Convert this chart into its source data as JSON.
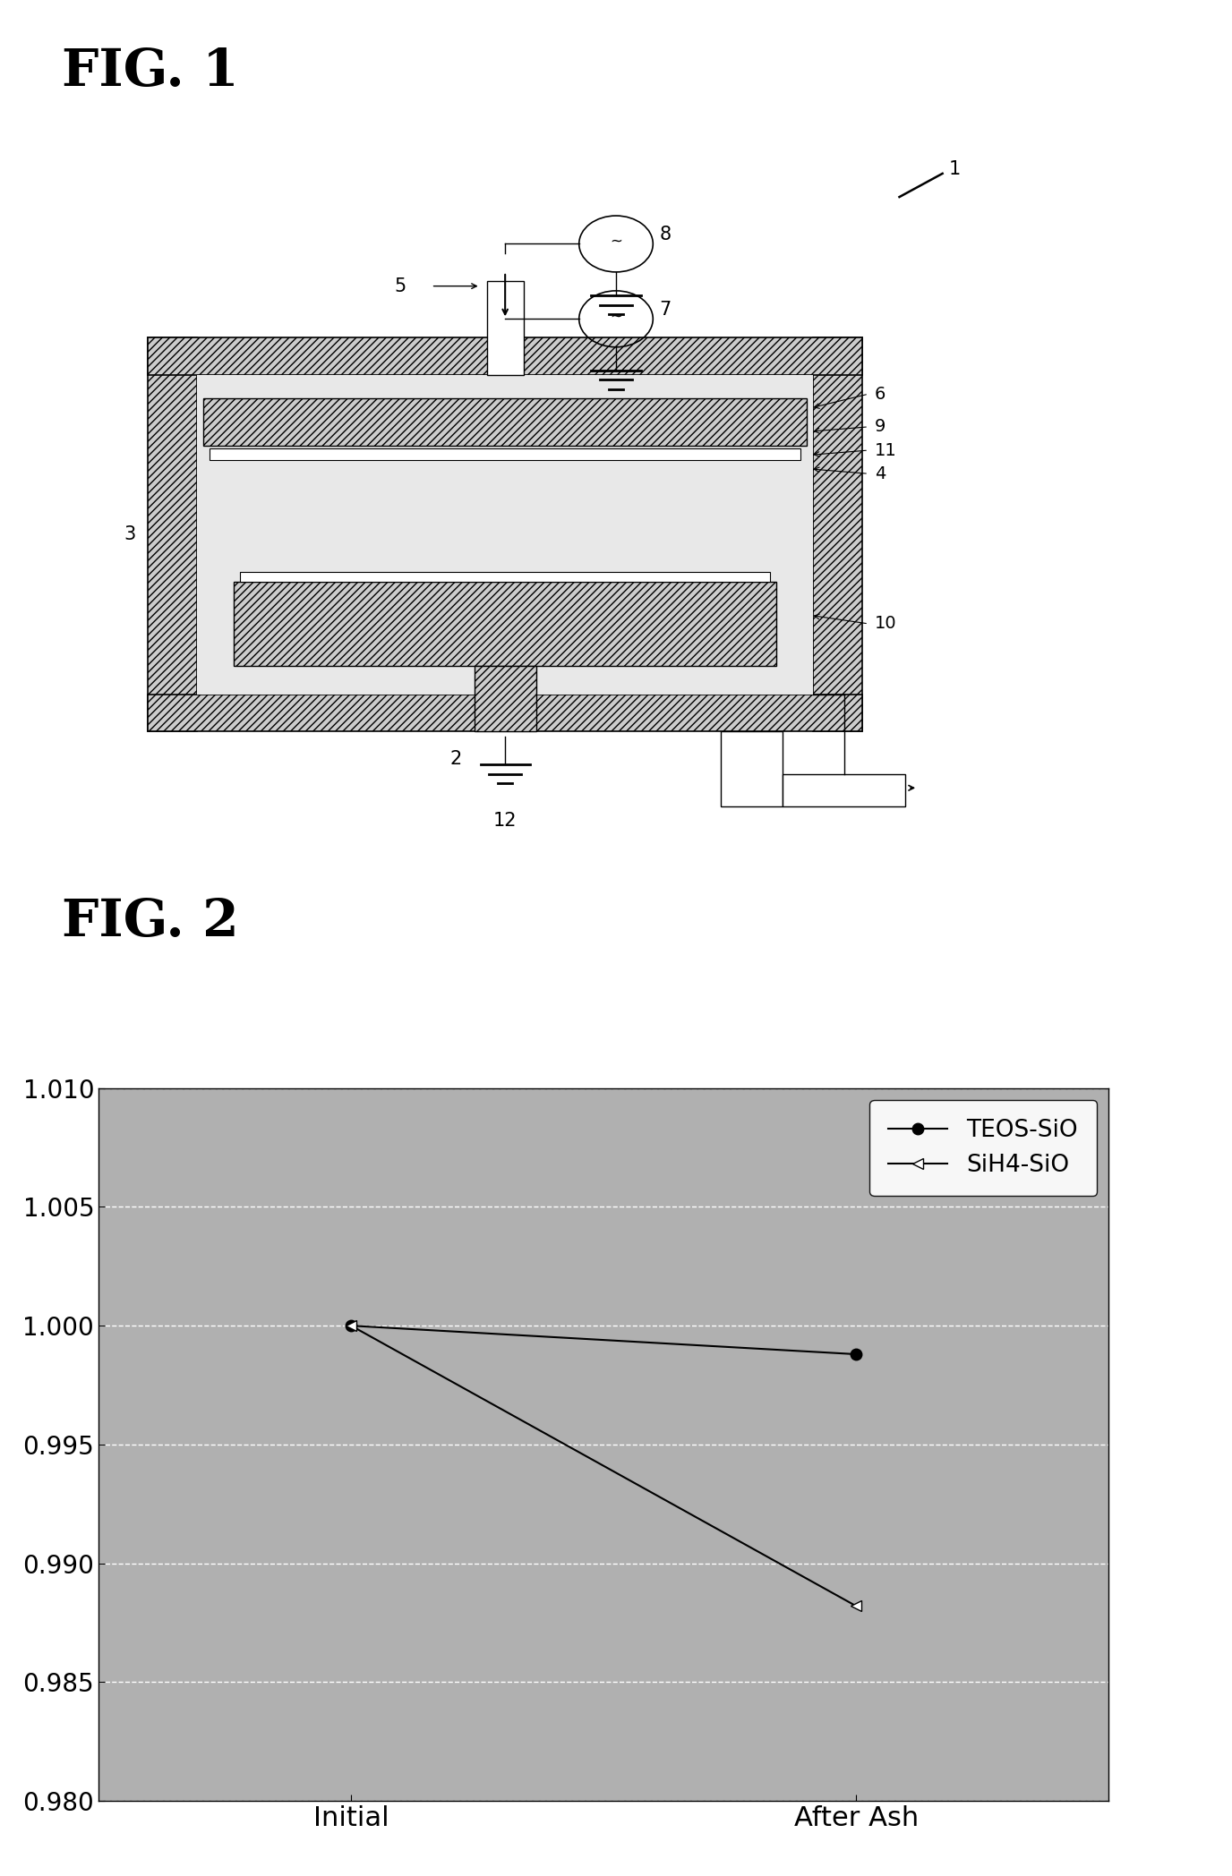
{
  "fig1_title": "FIG. 1",
  "fig2_title": "FIG. 2",
  "fig2_data": {
    "teos_sio": {
      "initial": 1.0,
      "after_ash": 0.9988
    },
    "sih4_sio": {
      "initial": 1.0,
      "after_ash": 0.9882
    },
    "x_labels": [
      "Initial",
      "After Ash"
    ],
    "y_min": 0.98,
    "y_max": 1.01,
    "y_ticks": [
      0.98,
      0.985,
      0.99,
      0.995,
      1.0,
      1.005,
      1.01
    ],
    "legend_teos": "TEOS-SiO",
    "legend_sih4": "SiH4-SiO",
    "bg_color": "#b0b0b0",
    "grid_color": "#ffffff"
  },
  "background_color": "#ffffff",
  "title_fontsize": 42,
  "label_fontsize": 22,
  "tick_fontsize": 20,
  "diagram_label_fontsize": 15
}
